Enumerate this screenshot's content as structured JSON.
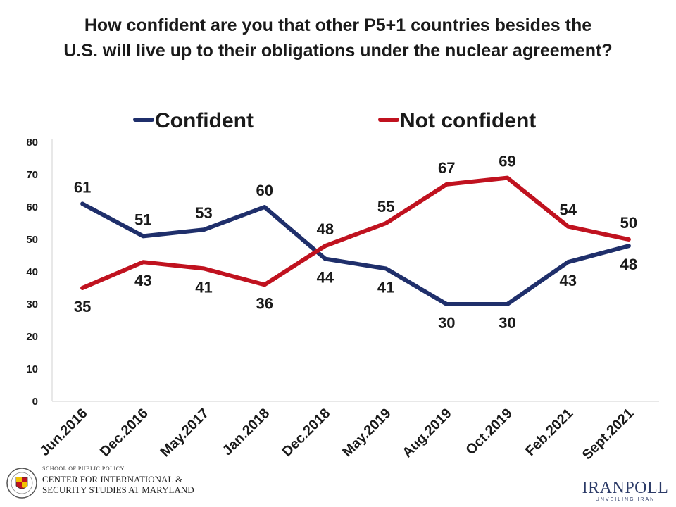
{
  "chart_data": {
    "type": "line",
    "title_lines": [
      "How confident are you that other P5+1 countries besides the",
      "U.S. will live up to their obligations under the nuclear agreement?"
    ],
    "categories": [
      "Jun.2016",
      "Dec.2016",
      "May.2017",
      "Jan.2018",
      "Dec.2018",
      "May.2019",
      "Aug.2019",
      "Oct.2019",
      "Feb.2021",
      "Sept.2021"
    ],
    "series": [
      {
        "name": "Confident",
        "color": "#1f2f6b",
        "values": [
          61,
          51,
          53,
          60,
          44,
          41,
          30,
          30,
          43,
          48
        ]
      },
      {
        "name": "Not confident",
        "color": "#c0121f",
        "values": [
          35,
          43,
          41,
          36,
          48,
          55,
          67,
          69,
          54,
          50
        ]
      }
    ],
    "data_label_positions": [
      [
        "above",
        "above",
        "above",
        "above",
        "below",
        "below",
        "below",
        "below",
        "below",
        "below"
      ],
      [
        "below",
        "below",
        "below",
        "below",
        "above",
        "above",
        "above",
        "above",
        "above",
        "above"
      ]
    ],
    "ylim": [
      0,
      80
    ],
    "yticks": [
      0,
      10,
      20,
      30,
      40,
      50,
      60,
      70,
      80
    ],
    "legend_position": "top-center",
    "grid": false
  },
  "logos": {
    "umd": {
      "school": "SCHOOL OF PUBLIC POLICY",
      "center_line1": "CENTER FOR INTERNATIONAL &",
      "center_line2": "SECURITY STUDIES AT MARYLAND"
    },
    "iranpoll": {
      "name": "IRANPOLL",
      "tagline": "UNVEILING IRAN"
    }
  }
}
